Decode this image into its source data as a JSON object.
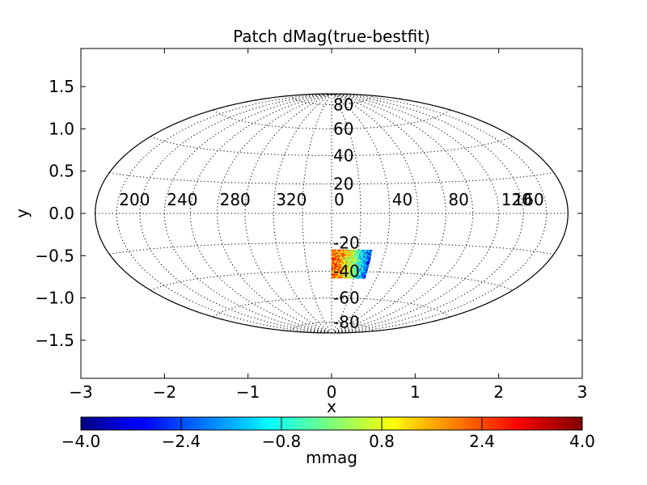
{
  "chart_data": {
    "type": "scatter",
    "projection": "hammer-aitoff",
    "title": "Patch dMag(true-bestfit)",
    "xlabel": "x",
    "ylabel": "y",
    "xlim": [
      -3,
      3
    ],
    "ylim": [
      -1.95,
      1.95
    ],
    "xticks": [
      "−3",
      "−2",
      "−1",
      "0",
      "1",
      "2",
      "3"
    ],
    "xtick_values": [
      -3,
      -2,
      -1,
      0,
      1,
      2,
      3
    ],
    "yticks": [
      "1.5",
      "1.0",
      "0.5",
      "0.0",
      "−0.5",
      "−1.0",
      "−1.5"
    ],
    "ytick_values": [
      1.5,
      1.0,
      0.5,
      0.0,
      -0.5,
      -1.0,
      -1.5
    ],
    "grid": true,
    "meridian_labels": [
      "200",
      "240",
      "280",
      "320",
      "0",
      "40",
      "80",
      "120",
      "160"
    ],
    "meridian_values": [
      200,
      240,
      280,
      320,
      0,
      40,
      80,
      120,
      160
    ],
    "parallel_labels": [
      "80",
      "60",
      "40",
      "20",
      "-20",
      "-40",
      "-60",
      "-80"
    ],
    "parallel_values": [
      80,
      60,
      40,
      20,
      -20,
      -40,
      -60,
      -80
    ],
    "patch": {
      "ra_range": [
        0,
        30
      ],
      "dec_range": [
        -45,
        -25
      ]
    },
    "colorbar": {
      "label": "mmag",
      "range": [
        -4.0,
        4.0
      ],
      "ticks": [
        "−4.0",
        "−2.4",
        "−0.8",
        "0.8",
        "2.4",
        "4.0"
      ],
      "tick_values": [
        -4.0,
        -2.4,
        -0.8,
        0.8,
        2.4,
        4.0
      ],
      "colormap": "jet"
    }
  }
}
